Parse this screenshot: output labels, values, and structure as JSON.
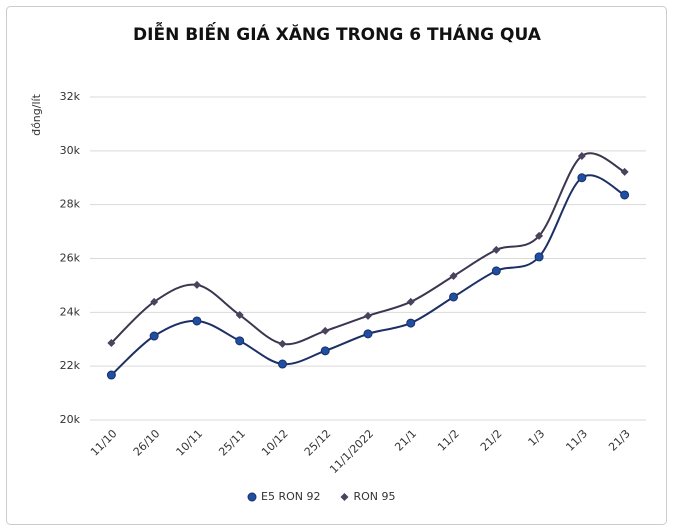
{
  "chart_data": {
    "type": "line",
    "title": "DIỄN BIẾN GIÁ XĂNG TRONG 6 THÁNG QUA",
    "y_label": "đồng/lít",
    "categories": [
      "11/10",
      "26/10",
      "10/11",
      "25/11",
      "10/12",
      "25/12",
      "11/1/2022",
      "21/1",
      "11/2",
      "21/2",
      "1/3",
      "11/3",
      "21/3"
    ],
    "series": [
      {
        "name": "E5 RON 92",
        "color": "#1c2f66",
        "marker_color": "#1f4fa3",
        "marker": "circle",
        "values": [
          21670,
          23120,
          23680,
          22940,
          22080,
          22570,
          23200,
          23600,
          24570,
          25540,
          26060,
          29000,
          28360
        ]
      },
      {
        "name": "RON 95",
        "color": "#3c3650",
        "marker_color": "#4b425e",
        "marker": "diamond",
        "values": [
          22860,
          24390,
          25020,
          23900,
          22830,
          23310,
          23870,
          24390,
          25350,
          26320,
          26840,
          29810,
          29220
        ]
      }
    ],
    "ylim": [
      20000,
      32000
    ],
    "yticks": [
      {
        "value": 20000,
        "label": "20k"
      },
      {
        "value": 22000,
        "label": "22k"
      },
      {
        "value": 24000,
        "label": "24k"
      },
      {
        "value": 26000,
        "label": "26k"
      },
      {
        "value": 28000,
        "label": "28k"
      },
      {
        "value": 30000,
        "label": "30k"
      },
      {
        "value": 32000,
        "label": "32k"
      }
    ],
    "grid": true,
    "smooth": true,
    "legend": "bottom"
  }
}
